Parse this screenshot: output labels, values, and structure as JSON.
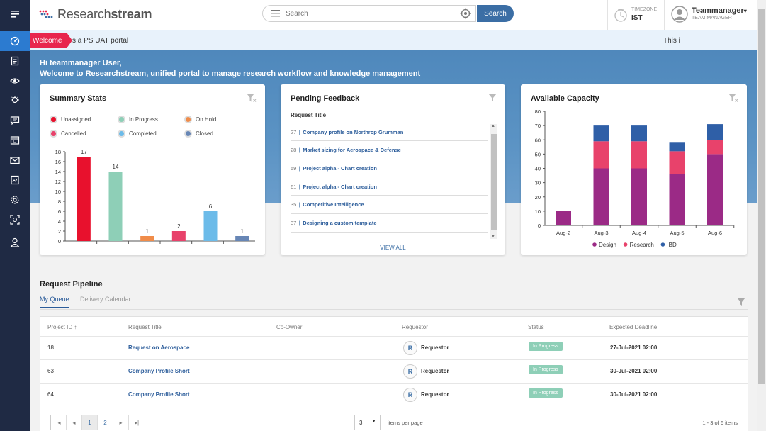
{
  "app": {
    "logo_light": "Research",
    "logo_bold": "stream"
  },
  "search": {
    "placeholder": "Search",
    "button": "Search"
  },
  "timezone": {
    "label": "TIMEZONE",
    "value": "IST"
  },
  "user": {
    "name": "Teammanager",
    "role": "TEAM MANAGER"
  },
  "ticker": {
    "tag": "Welcome",
    "text_a": "s a PS UAT portal",
    "text_b": "This i"
  },
  "hero": {
    "greeting": "Hi teammanager User,",
    "welcome": "Welcome to Researchstream, unified portal to manage research workflow and knowledge management"
  },
  "sidebar": {
    "items": [
      "menu-icon",
      "dashboard-icon",
      "request-icon",
      "watch-icon",
      "idea-icon",
      "chat-icon",
      "billing-icon",
      "mail-icon",
      "report-icon",
      "settings-icon",
      "capture-icon",
      "user-icon"
    ]
  },
  "summary": {
    "title": "Summary Stats",
    "legend": [
      {
        "label": "Unassigned",
        "color": "#e8112d"
      },
      {
        "label": "In Progress",
        "color": "#8ecfb7"
      },
      {
        "label": "On Hold",
        "color": "#f08c4a"
      },
      {
        "label": "Cancelled",
        "color": "#e8426b"
      },
      {
        "label": "Completed",
        "color": "#6cbbe9"
      },
      {
        "label": "Closed",
        "color": "#6786b5"
      }
    ]
  },
  "feedback": {
    "title": "Pending Feedback",
    "header": "Request Title",
    "view_all": "VIEW ALL",
    "items": [
      {
        "id": "27",
        "title": "Company profile on Northrop Grumman"
      },
      {
        "id": "28",
        "title": "Market sizing for Aerospace & Defense"
      },
      {
        "id": "59",
        "title": "Project alpha - Chart creation"
      },
      {
        "id": "61",
        "title": "Project alpha - Chart creation"
      },
      {
        "id": "35",
        "title": "Competitive Intelligence"
      },
      {
        "id": "37",
        "title": "Designing a custom template"
      }
    ]
  },
  "capacity": {
    "title": "Available Capacity"
  },
  "pipeline": {
    "title": "Request Pipeline",
    "tabs": [
      "My Queue",
      "Delivery Calendar"
    ],
    "columns": [
      "Project ID",
      "Request Title",
      "Co-Owner",
      "Requestor",
      "Status",
      "Expected Deadline"
    ],
    "rows": [
      {
        "id": "18",
        "title": "Request on Aerospace",
        "co_owner": "",
        "avatar": "R",
        "requestor": "Requestor",
        "status": "In Progress",
        "deadline": "27-Jul-2021 02:00"
      },
      {
        "id": "63",
        "title": "Company Profile Short",
        "co_owner": "",
        "avatar": "R",
        "requestor": "Requestor",
        "status": "In Progress",
        "deadline": "30-Jul-2021 02:00"
      },
      {
        "id": "64",
        "title": "Company Profile Short",
        "co_owner": "",
        "avatar": "R",
        "requestor": "Requestor",
        "status": "In Progress",
        "deadline": "30-Jul-2021 02:00"
      }
    ],
    "pager": {
      "pages": [
        "1",
        "2"
      ],
      "current": "1",
      "per_page": "3",
      "per_page_label": "items per page",
      "info": "1 - 3 of 6 items"
    }
  },
  "chart_data": [
    {
      "type": "bar",
      "title": "Summary Stats",
      "categories": [
        "Unassigned",
        "In Progress",
        "On Hold",
        "Cancelled",
        "Completed",
        "Closed"
      ],
      "values": [
        17,
        14,
        1,
        2,
        6,
        1
      ],
      "colors": [
        "#e8112d",
        "#8ecfb7",
        "#f08c4a",
        "#e8426b",
        "#6cbbe9",
        "#6786b5"
      ],
      "ylim": [
        0,
        18
      ],
      "yticks": [
        0,
        2,
        4,
        6,
        8,
        10,
        12,
        14,
        16,
        18
      ]
    },
    {
      "type": "bar",
      "title": "Available Capacity",
      "stacked": true,
      "categories": [
        "Aug-2",
        "Aug-3",
        "Aug-4",
        "Aug-5",
        "Aug-6"
      ],
      "series": [
        {
          "name": "Design",
          "color": "#9b2a86",
          "values": [
            10,
            40,
            40,
            36,
            50
          ]
        },
        {
          "name": "Research",
          "color": "#e8426b",
          "values": [
            0,
            19,
            19,
            16,
            10
          ]
        },
        {
          "name": "IBD",
          "color": "#2f5fa7",
          "values": [
            0,
            11,
            11,
            6,
            11
          ]
        }
      ],
      "ylim": [
        0,
        80
      ],
      "yticks": [
        0,
        10,
        20,
        30,
        40,
        50,
        60,
        70,
        80
      ],
      "legend_position": "bottom"
    }
  ]
}
